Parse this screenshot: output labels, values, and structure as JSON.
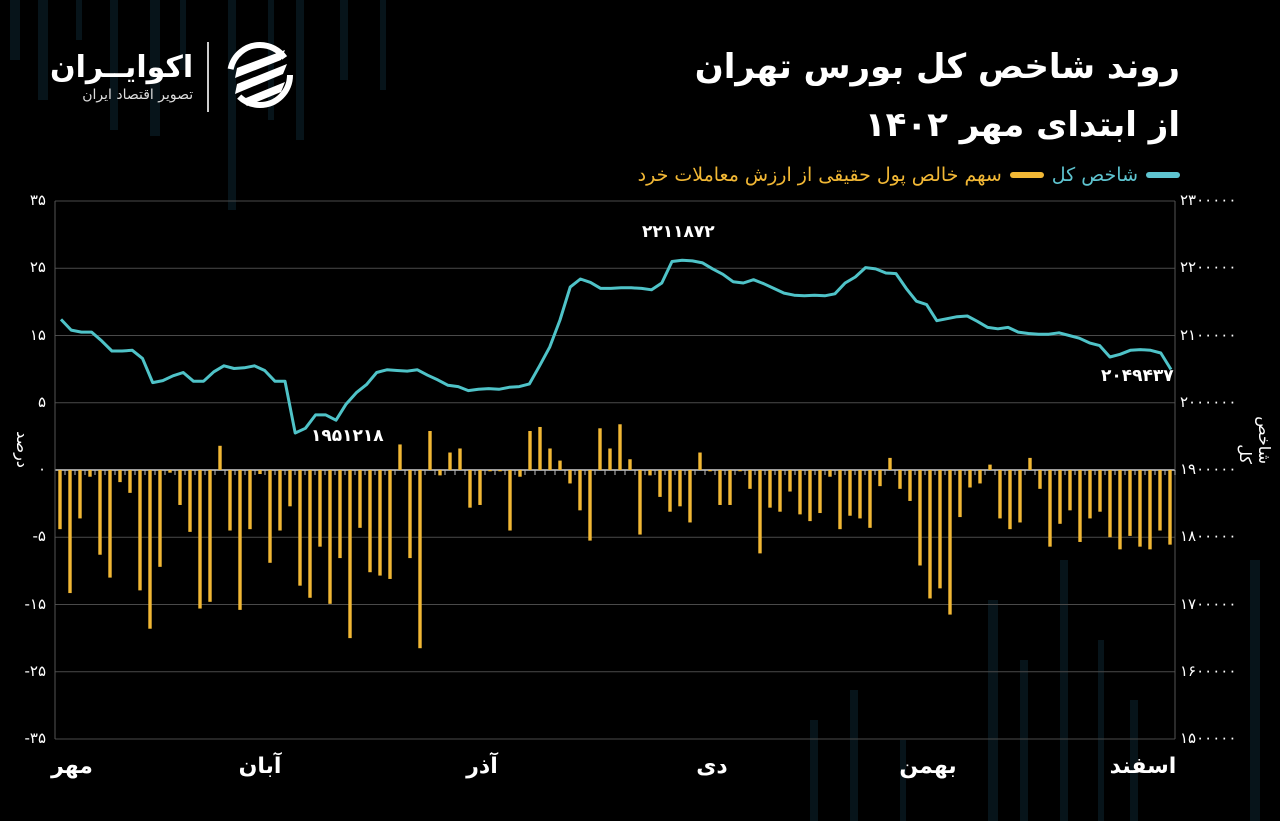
{
  "header": {
    "title_line1": "روند شاخص کل بورس تهران",
    "title_line2": "از ابتدای مهر ۱۴۰۲"
  },
  "logo": {
    "brand": "اکوایــران",
    "tagline": "تصویر اقتصاد ایران",
    "icon": "ecoiran-logo-icon"
  },
  "legend": {
    "index_label": "شاخص کل",
    "retail_label": "سهم خالص پول حقیقی از ارزش معاملات خرد"
  },
  "colors": {
    "background": "#000000",
    "index_line": "#4fc3c8",
    "retail_bars": "#f2b835",
    "grid": "#555555",
    "text": "#ffffff"
  },
  "axes": {
    "left_label": "درصد",
    "right_label": "شاخص کل",
    "left_ticks": [
      "۳۵",
      "۲۵",
      "۱۵",
      "۵",
      "۰",
      "-۵",
      "-۱۵",
      "-۲۵",
      "-۳۵"
    ],
    "right_ticks": [
      "۲۳۰۰۰۰۰",
      "۲۲۰۰۰۰۰",
      "۲۱۰۰۰۰۰",
      "۲۰۰۰۰۰۰",
      "۱۹۰۰۰۰۰",
      "۱۸۰۰۰۰۰",
      "۱۷۰۰۰۰۰",
      "۱۶۰۰۰۰۰",
      "۱۵۰۰۰۰۰"
    ],
    "x_months": [
      "مهر",
      "آبان",
      "آذر",
      "دی",
      "بهمن",
      "اسفند"
    ]
  },
  "annotations": {
    "min": "۱۹۵۱۲۱۸",
    "max": "۲۲۱۱۸۷۲",
    "last": "۲۰۴۹۴۳۷"
  },
  "chart_data": {
    "type": "bar+line",
    "title": "روند شاخص کل بورس تهران از ابتدای مهر ۱۴۰۲",
    "xlabel": "",
    "ylabel_left": "درصد",
    "ylabel_right": "شاخص کل",
    "x_categories": [
      "مهر",
      "آبان",
      "آذر",
      "دی",
      "بهمن",
      "اسفند"
    ],
    "ylim_right": [
      1500000,
      2300000
    ],
    "left_tick_labels": [
      35,
      25,
      15,
      5,
      0,
      -5,
      -15,
      -25,
      -35
    ],
    "legend_position": "top-right",
    "grid": true,
    "series": [
      {
        "name": "شاخص کل",
        "type": "line",
        "axis": "right",
        "annotations": {
          "min": 1951218,
          "max": 2211872,
          "last": 2049437
        },
        "values": [
          2124000,
          2108000,
          2105000,
          2105000,
          2092000,
          2077000,
          2077000,
          2078000,
          2066000,
          2030000,
          2033000,
          2040000,
          2045000,
          2032000,
          2032000,
          2046000,
          2055000,
          2051000,
          2052000,
          2055000,
          2048000,
          2032000,
          2032000,
          1955000,
          1962000,
          1982000,
          1982000,
          1974000,
          1998000,
          2015000,
          2027000,
          2045000,
          2049000,
          2048000,
          2047000,
          2049000,
          2041000,
          2034000,
          2026000,
          2024000,
          2018000,
          2020000,
          2021000,
          2020000,
          2023000,
          2024000,
          2028000,
          2055000,
          2083000,
          2123000,
          2172000,
          2184000,
          2179000,
          2170000,
          2170000,
          2171000,
          2171000,
          2170000,
          2168000,
          2178000,
          2210000,
          2212000,
          2211000,
          2208000,
          2199000,
          2191000,
          2180000,
          2178000,
          2183000,
          2177000,
          2170000,
          2163000,
          2160000,
          2159000,
          2160000,
          2159000,
          2162000,
          2178000,
          2187000,
          2201000,
          2199000,
          2193000,
          2192000,
          2170000,
          2151000,
          2146000,
          2122000,
          2125000,
          2128000,
          2129000,
          2121000,
          2112000,
          2110000,
          2112000,
          2105000,
          2103000,
          2102000,
          2102000,
          2104000,
          2100000,
          2096000,
          2089000,
          2085000,
          2068000,
          2072000,
          2078000,
          2079000,
          2078000,
          2074000,
          2049437
        ]
      },
      {
        "name": "سهم خالص پول حقیقی از ارزش معاملات خرد",
        "type": "bar",
        "axis": "left",
        "unit": "percent (pixel-mapped to displayed tick labels)",
        "values": [
          -4.4,
          -13.3,
          -3.6,
          -0.5,
          -7.6,
          -11.0,
          -0.9,
          -1.7,
          -12.9,
          -18.6,
          -9.4,
          -0.2,
          -2.6,
          -4.6,
          -15.6,
          -14.6,
          1.8,
          -4.5,
          -15.8,
          -4.4,
          -0.3,
          -8.8,
          -4.5,
          -2.7,
          -12.2,
          -14.0,
          -6.4,
          -14.9,
          -8.1,
          -20.0,
          -4.3,
          -10.2,
          -10.7,
          -11.2,
          1.9,
          -8.1,
          -21.5,
          2.9,
          -0.4,
          1.3,
          1.6,
          -2.8,
          -2.6,
          -0.1,
          -0.1,
          -4.5,
          -0.5,
          2.9,
          3.2,
          1.6,
          0.7,
          -1.0,
          -3.0,
          -5.5,
          3.1,
          1.6,
          3.4,
          0.8,
          -4.8,
          -0.4,
          -2.0,
          -3.1,
          -2.7,
          -3.9,
          1.3,
          -0.1,
          -2.6,
          -2.6,
          -0.1,
          -1.4,
          -7.4,
          -2.8,
          -3.1,
          -1.6,
          -3.3,
          -3.8,
          -3.2,
          -0.5,
          -4.4,
          -3.4,
          -3.6,
          -4.3,
          -1.2,
          0.9,
          -1.4,
          -2.3,
          -9.2,
          -14.1,
          -12.6,
          -16.5,
          -3.5,
          -1.3,
          -1.0,
          0.4,
          -3.6,
          -4.4,
          -3.9,
          0.9,
          -1.4,
          -6.4,
          -4.0,
          -3.0,
          -5.7,
          -3.6,
          -3.1,
          -5.0,
          -6.8,
          -4.9,
          -6.4,
          -6.8,
          -4.5,
          -6.1
        ]
      }
    ]
  }
}
